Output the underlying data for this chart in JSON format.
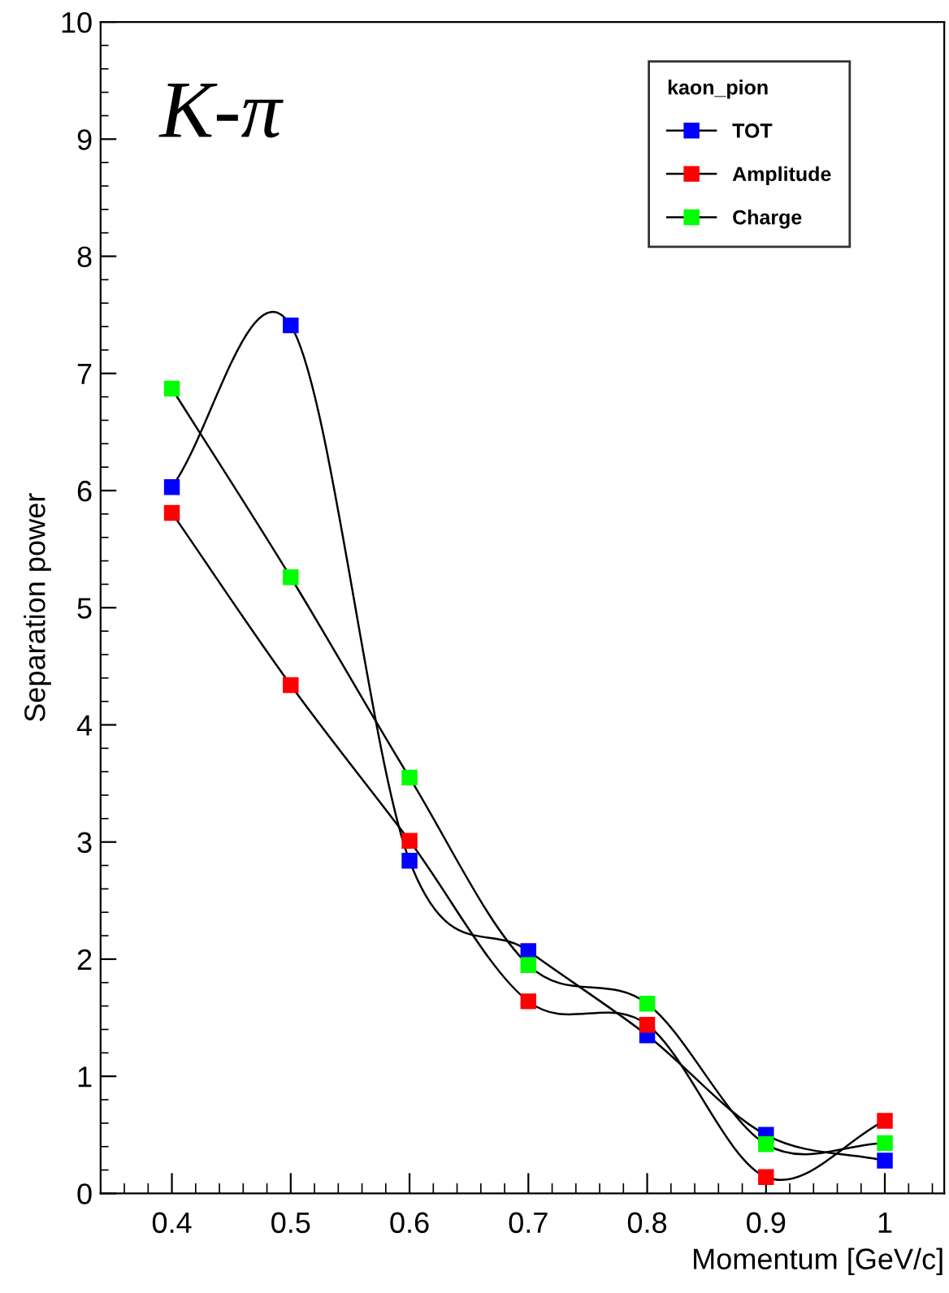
{
  "chart_data": {
    "type": "line",
    "xlabel": "Momentum [GeV/c]",
    "ylabel": "Separation power",
    "legend_title": "kaon_pion",
    "annotations": [
      "K-π"
    ],
    "x": [
      0.4,
      0.5,
      0.6,
      0.7,
      0.8,
      0.9,
      1.0
    ],
    "series": [
      {
        "name": "TOT",
        "color": "#0000ff",
        "values": [
          6.03,
          7.41,
          2.84,
          2.07,
          1.35,
          0.5,
          0.28
        ]
      },
      {
        "name": "Amplitude",
        "color": "#ff0000",
        "values": [
          5.81,
          4.34,
          3.01,
          1.64,
          1.44,
          0.14,
          0.62
        ]
      },
      {
        "name": "Charge",
        "color": "#00ff00",
        "values": [
          6.87,
          5.26,
          3.55,
          1.95,
          1.62,
          0.42,
          0.43
        ]
      }
    ],
    "xlim": [
      0.34,
      1.05
    ],
    "xticks": [
      {
        "value": 0.4,
        "label": "0.4"
      },
      {
        "value": 0.5,
        "label": "0.5"
      },
      {
        "value": 0.6,
        "label": "0.6"
      },
      {
        "value": 0.7,
        "label": "0.7"
      },
      {
        "value": 0.8,
        "label": "0.8"
      },
      {
        "value": 0.9,
        "label": "0.9"
      },
      {
        "value": 1.0,
        "label": "1"
      }
    ],
    "ylim": [
      0,
      10
    ],
    "yticks": [
      0,
      1,
      2,
      3,
      4,
      5,
      6,
      7,
      8,
      9,
      10
    ],
    "legend": "top right",
    "marker": "square",
    "line_style": "solid",
    "grid": false
  }
}
